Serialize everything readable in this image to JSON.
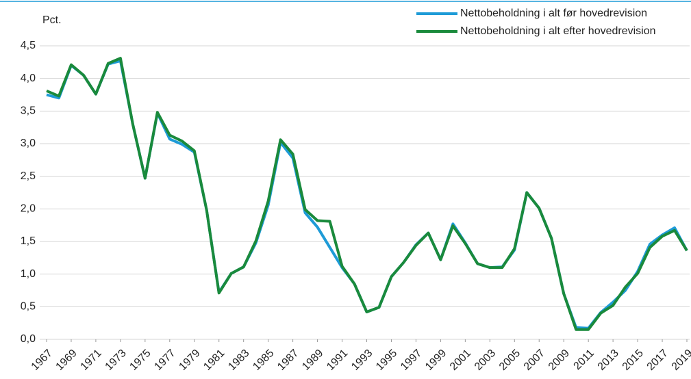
{
  "chart_data": {
    "type": "line",
    "y_label": "Pct.",
    "x": [
      1967,
      1968,
      1969,
      1970,
      1971,
      1972,
      1973,
      1974,
      1975,
      1976,
      1977,
      1978,
      1979,
      1980,
      1981,
      1982,
      1983,
      1984,
      1985,
      1986,
      1987,
      1988,
      1989,
      1990,
      1991,
      1992,
      1993,
      1994,
      1995,
      1996,
      1997,
      1998,
      1999,
      2000,
      2001,
      2002,
      2003,
      2004,
      2005,
      2006,
      2007,
      2008,
      2009,
      2010,
      2011,
      2012,
      2013,
      2014,
      2015,
      2016,
      2017,
      2018,
      2019
    ],
    "xlim": [
      1967,
      2019
    ],
    "xticks": [
      1967,
      1969,
      1971,
      1973,
      1975,
      1977,
      1979,
      1981,
      1983,
      1985,
      1987,
      1989,
      1991,
      1993,
      1995,
      1997,
      1999,
      2001,
      2003,
      2005,
      2007,
      2009,
      2011,
      2013,
      2015,
      2017,
      2019
    ],
    "ylim": [
      0,
      4.5
    ],
    "yticks": [
      {
        "value": 0,
        "label": "0,0"
      },
      {
        "value": 0.5,
        "label": "0,5"
      },
      {
        "value": 1,
        "label": "1,0"
      },
      {
        "value": 1.5,
        "label": "1,5"
      },
      {
        "value": 2,
        "label": "2,0"
      },
      {
        "value": 2.5,
        "label": "2,5"
      },
      {
        "value": 3,
        "label": "3,0"
      },
      {
        "value": 3.5,
        "label": "3,5"
      },
      {
        "value": 4,
        "label": "4,0"
      },
      {
        "value": 4.5,
        "label": "4,5"
      }
    ],
    "grid": true,
    "legend": "top-right",
    "series": [
      {
        "name": "Nettobeholdning i alt før hovedrevision",
        "color": "#1e9bd7",
        "values": [
          3.75,
          3.7,
          4.2,
          4.05,
          3.76,
          4.22,
          4.27,
          3.3,
          2.47,
          3.47,
          3.07,
          2.99,
          2.87,
          1.98,
          0.72,
          1.01,
          1.11,
          1.48,
          2.06,
          3.02,
          2.78,
          1.94,
          1.72,
          1.41,
          1.1,
          0.85,
          0.42,
          0.49,
          0.96,
          1.18,
          1.45,
          1.63,
          1.22,
          1.77,
          1.48,
          1.16,
          1.1,
          1.11,
          1.37,
          2.25,
          2.01,
          1.55,
          0.7,
          0.18,
          0.17,
          0.41,
          0.57,
          0.75,
          1.04,
          1.46,
          1.6,
          1.71,
          1.36
        ]
      },
      {
        "name": "Nettobeholdning i alt efter hovedrevision",
        "color": "#1a8a3c",
        "values": [
          3.81,
          3.73,
          4.21,
          4.05,
          3.76,
          4.23,
          4.31,
          3.3,
          2.47,
          3.48,
          3.13,
          3.04,
          2.89,
          1.98,
          0.71,
          1.01,
          1.11,
          1.51,
          2.12,
          3.06,
          2.84,
          1.99,
          1.82,
          1.81,
          1.12,
          0.85,
          0.42,
          0.49,
          0.96,
          1.18,
          1.44,
          1.63,
          1.22,
          1.74,
          1.47,
          1.16,
          1.1,
          1.1,
          1.39,
          2.25,
          2.01,
          1.55,
          0.7,
          0.15,
          0.15,
          0.4,
          0.52,
          0.8,
          1.01,
          1.41,
          1.58,
          1.67,
          1.36
        ]
      }
    ]
  }
}
